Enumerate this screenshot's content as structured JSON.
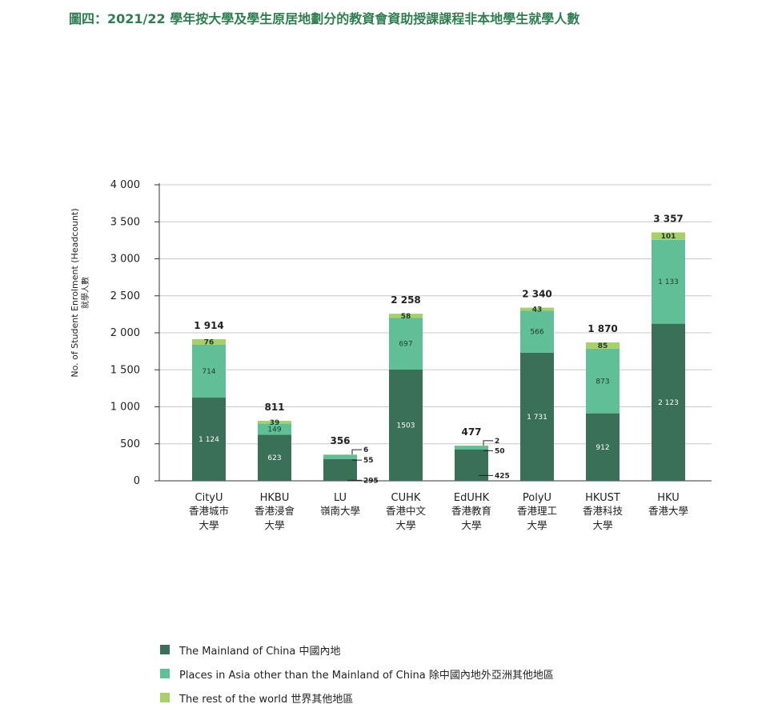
{
  "title": "圖四：2021/22 學年按大學及學生原居地劃分的教資會資助授課課程非本地學生就學人數",
  "chart_data": {
    "type": "bar",
    "stacked": true,
    "ylabel_en": "No. of Student Enrolment (Headcount)",
    "ylabel_zh": "就學人數",
    "ylim": [
      0,
      4000
    ],
    "yticks": [
      0,
      500,
      1000,
      1500,
      2000,
      2500,
      3000,
      3500,
      4000
    ],
    "ytick_labels": [
      "0",
      "500",
      "1 000",
      "1 500",
      "2 000",
      "2 500",
      "3 000",
      "3 500",
      "4 000"
    ],
    "grid": true,
    "categories": [
      {
        "en": "CityU",
        "zh1": "香港城市",
        "zh2": "大學"
      },
      {
        "en": "HKBU",
        "zh1": "香港浸會",
        "zh2": "大學"
      },
      {
        "en": "LU",
        "zh1": "嶺南大學",
        "zh2": ""
      },
      {
        "en": "CUHK",
        "zh1": "香港中文",
        "zh2": "大學"
      },
      {
        "en": "EdUHK",
        "zh1": "香港教育",
        "zh2": "大學"
      },
      {
        "en": "PolyU",
        "zh1": "香港理工",
        "zh2": "大學"
      },
      {
        "en": "HKUST",
        "zh1": "香港科技",
        "zh2": "大學"
      },
      {
        "en": "HKU",
        "zh1": "香港大學",
        "zh2": ""
      }
    ],
    "series": [
      {
        "name": "The Mainland of China 中國內地",
        "color": "#3a7057",
        "values": [
          1124,
          623,
          295,
          1503,
          425,
          1731,
          912,
          2123
        ],
        "labels": [
          "1 124",
          "623",
          "295",
          "1503",
          "425",
          "1 731",
          "912",
          "2 123"
        ]
      },
      {
        "name": "Places in Asia other than the Mainland of China 除中國內地外亞洲其他地區",
        "color": "#60bf97",
        "values": [
          714,
          149,
          55,
          697,
          50,
          566,
          873,
          1133
        ],
        "labels": [
          "714",
          "149",
          "55",
          "697",
          "50",
          "566",
          "873",
          "1 133"
        ]
      },
      {
        "name": "The rest of the world 世界其他地區",
        "color": "#a7cf6c",
        "values": [
          76,
          39,
          6,
          58,
          2,
          43,
          85,
          101
        ],
        "labels": [
          "76",
          "39",
          "6",
          "58",
          "2",
          "43",
          "85",
          "101"
        ]
      }
    ],
    "totals": [
      "1 914",
      "811",
      "356",
      "2 258",
      "477",
      "2 340",
      "1 870",
      "3 357"
    ],
    "legend_position": "bottom-left"
  }
}
